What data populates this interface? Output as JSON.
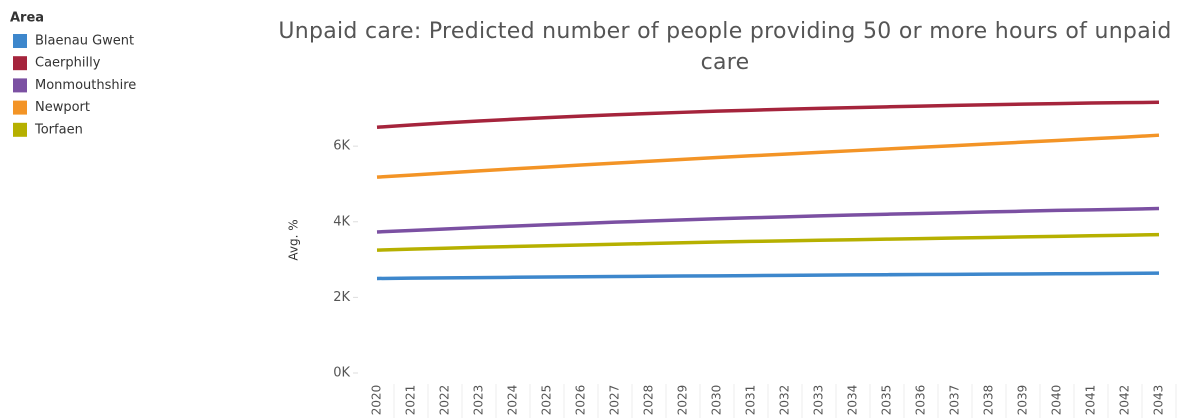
{
  "chart_data": {
    "type": "line",
    "title": "Unpaid care: Predicted number of people providing 50 or more hours of unpaid care",
    "legend_title": "Area",
    "y_label": "Avg. %",
    "x": [
      2020,
      2021,
      2022,
      2023,
      2024,
      2025,
      2026,
      2027,
      2028,
      2029,
      2030,
      2031,
      2032,
      2033,
      2034,
      2035,
      2036,
      2037,
      2038,
      2039,
      2040,
      2041,
      2042,
      2043
    ],
    "xlim": [
      2019.5,
      2043.5
    ],
    "xticks": [
      2020,
      2021,
      2022,
      2023,
      2024,
      2025,
      2026,
      2027,
      2028,
      2029,
      2030,
      2031,
      2032,
      2033,
      2034,
      2035,
      2036,
      2037,
      2038,
      2039,
      2040,
      2041,
      2042,
      2043
    ],
    "ylim": [
      0,
      7300
    ],
    "yticks": [
      {
        "value": 0,
        "label": "0K"
      },
      {
        "value": 2000,
        "label": "2K"
      },
      {
        "value": 4000,
        "label": "4K"
      },
      {
        "value": 6000,
        "label": "6K"
      }
    ],
    "legend": "left",
    "series": [
      {
        "name": "Blaenau Gwent",
        "color": "#3d87cc",
        "values": [
          2500,
          2508,
          2516,
          2524,
          2531,
          2538,
          2545,
          2552,
          2558,
          2564,
          2570,
          2576,
          2582,
          2588,
          2594,
          2600,
          2605,
          2610,
          2615,
          2620,
          2625,
          2630,
          2635,
          2640
        ]
      },
      {
        "name": "Caerphilly",
        "color": "#a5243c",
        "values": [
          6500,
          6560,
          6615,
          6665,
          6710,
          6755,
          6795,
          6830,
          6865,
          6895,
          6925,
          6950,
          6975,
          7000,
          7020,
          7040,
          7060,
          7080,
          7095,
          7110,
          7125,
          7140,
          7150,
          7160
        ]
      },
      {
        "name": "Monmouthshire",
        "color": "#7b50a2",
        "values": [
          3730,
          3770,
          3810,
          3850,
          3885,
          3920,
          3955,
          3990,
          4020,
          4050,
          4080,
          4105,
          4130,
          4155,
          4180,
          4200,
          4220,
          4240,
          4260,
          4280,
          4300,
          4315,
          4330,
          4350
        ]
      },
      {
        "name": "Newport",
        "color": "#f39426",
        "values": [
          5180,
          5235,
          5290,
          5345,
          5400,
          5450,
          5500,
          5550,
          5600,
          5650,
          5700,
          5745,
          5790,
          5835,
          5880,
          5925,
          5970,
          6015,
          6060,
          6105,
          6150,
          6195,
          6240,
          6290
        ]
      },
      {
        "name": "Torfaen",
        "color": "#b6b000",
        "values": [
          3250,
          3275,
          3300,
          3325,
          3345,
          3365,
          3385,
          3405,
          3425,
          3445,
          3465,
          3480,
          3495,
          3510,
          3525,
          3540,
          3555,
          3570,
          3585,
          3600,
          3615,
          3630,
          3645,
          3660
        ]
      }
    ]
  }
}
